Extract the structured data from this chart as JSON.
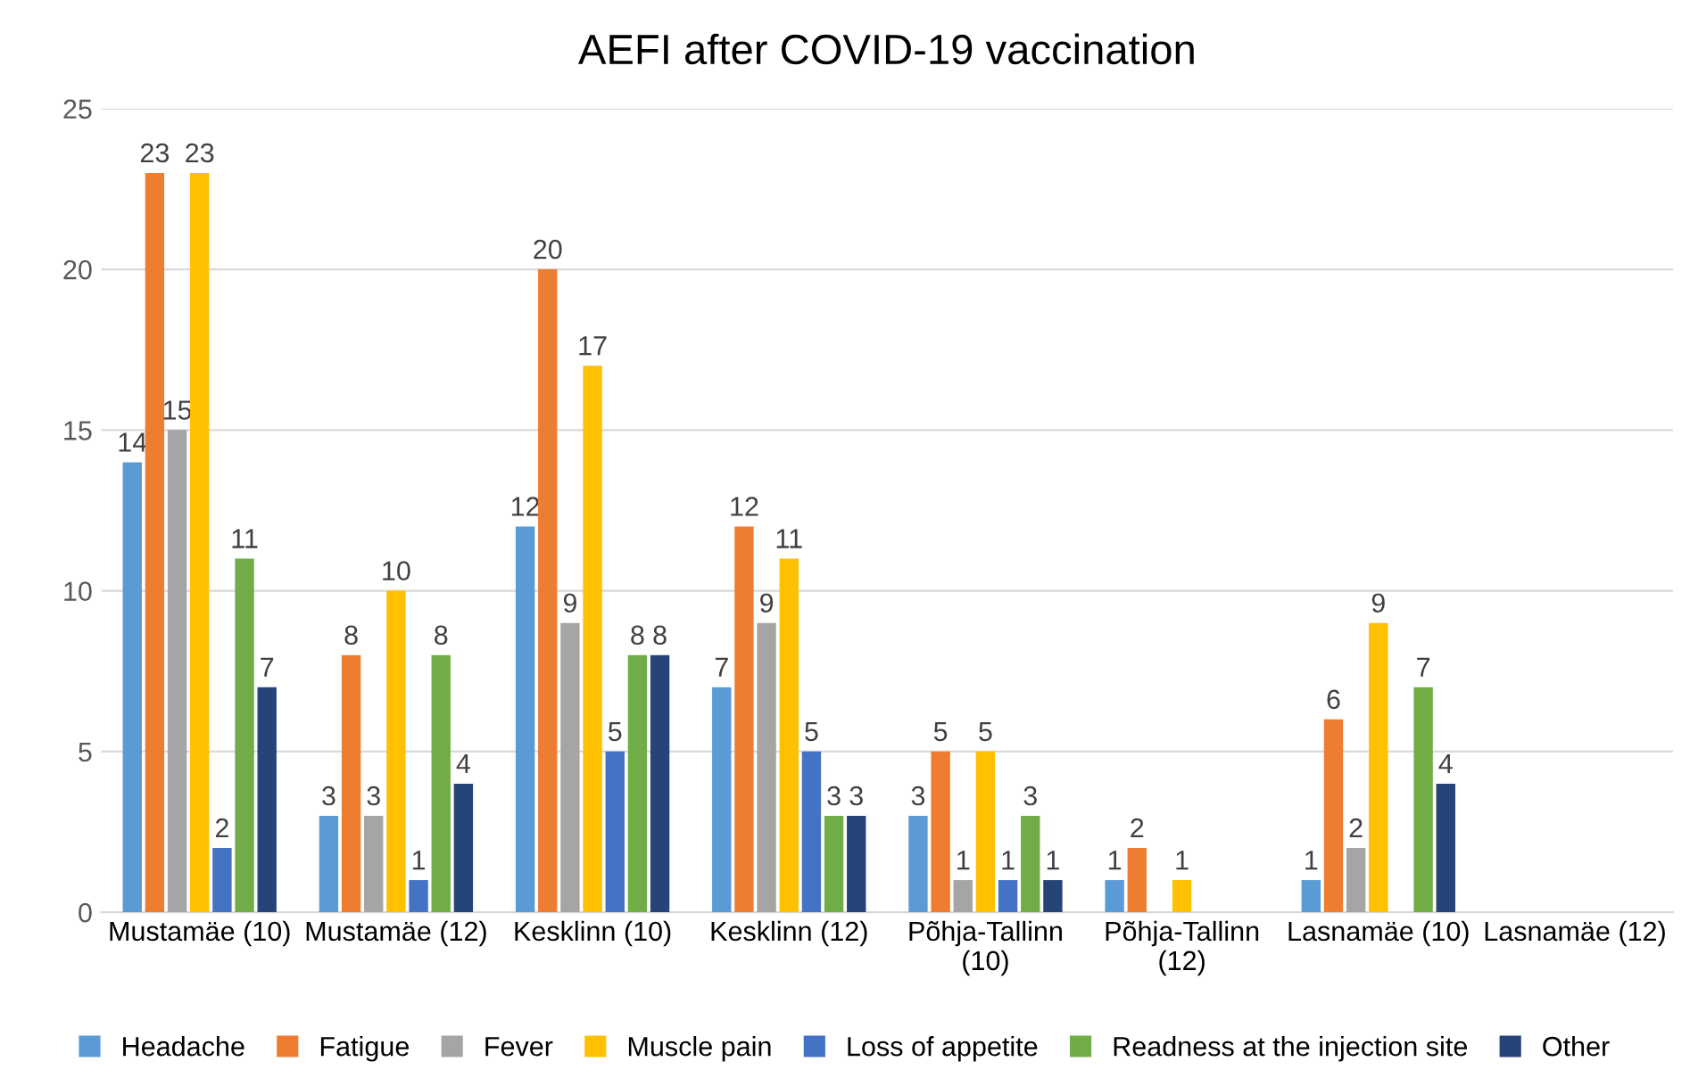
{
  "chart_data": {
    "type": "bar",
    "title": "AEFI after COVID-19 vaccination",
    "categories": [
      "Mustamäe (10)",
      "Mustamäe (12)",
      "Kesklinn (10)",
      "Kesklinn (12)",
      "Põhja-Tallinn\n(10)",
      "Põhja-Tallinn\n(12)",
      "Lasnamäe (10)",
      "Lasnamäe (12)"
    ],
    "series": [
      {
        "name": "Headache",
        "color": "#5b9bd5",
        "values": [
          14,
          3,
          12,
          7,
          3,
          1,
          1,
          null
        ]
      },
      {
        "name": "Fatigue",
        "color": "#ed7d31",
        "values": [
          23,
          8,
          20,
          12,
          5,
          2,
          6,
          null
        ]
      },
      {
        "name": "Fever",
        "color": "#a5a5a5",
        "values": [
          15,
          3,
          9,
          9,
          1,
          null,
          2,
          null
        ]
      },
      {
        "name": "Muscle pain",
        "color": "#ffc000",
        "values": [
          23,
          10,
          17,
          11,
          5,
          1,
          9,
          null
        ]
      },
      {
        "name": "Loss of appetite",
        "color": "#4472c4",
        "values": [
          2,
          1,
          5,
          5,
          1,
          null,
          null,
          null
        ]
      },
      {
        "name": "Readness at the injection site",
        "color": "#70ad47",
        "values": [
          11,
          8,
          8,
          3,
          3,
          null,
          7,
          null
        ]
      },
      {
        "name": "Other",
        "color": "#264478",
        "values": [
          7,
          4,
          8,
          3,
          1,
          null,
          4,
          null
        ]
      }
    ],
    "ylim": [
      0,
      25
    ],
    "yticks": [
      0,
      5,
      10,
      15,
      20,
      25
    ],
    "grid": "y",
    "legend": "bottom",
    "data_labels": true
  }
}
